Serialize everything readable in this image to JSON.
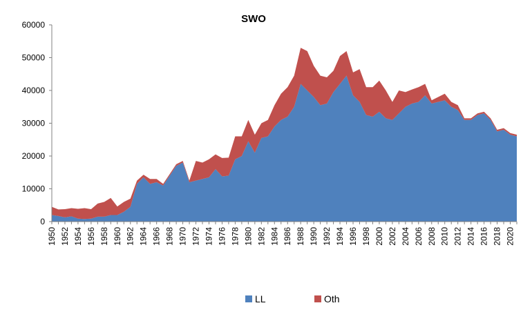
{
  "chart_data": {
    "type": "area",
    "stacked": true,
    "title": "SWO",
    "xlabel": "",
    "ylabel": "",
    "ylim": [
      0,
      60000
    ],
    "yticks": [
      0,
      10000,
      20000,
      30000,
      40000,
      50000,
      60000
    ],
    "grid": false,
    "legend_position": "bottom",
    "x": [
      1950,
      1951,
      1952,
      1953,
      1954,
      1955,
      1956,
      1957,
      1958,
      1959,
      1960,
      1961,
      1962,
      1963,
      1964,
      1965,
      1966,
      1967,
      1968,
      1969,
      1970,
      1971,
      1972,
      1973,
      1974,
      1975,
      1976,
      1977,
      1978,
      1979,
      1980,
      1981,
      1982,
      1983,
      1984,
      1985,
      1986,
      1987,
      1988,
      1989,
      1990,
      1991,
      1992,
      1993,
      1994,
      1995,
      1996,
      1997,
      1998,
      1999,
      2000,
      2001,
      2002,
      2003,
      2004,
      2005,
      2006,
      2007,
      2008,
      2009,
      2010,
      2011,
      2012,
      2013,
      2014,
      2015,
      2016,
      2017,
      2018,
      2019,
      2020,
      2021
    ],
    "xtick_labels": [
      "1950",
      "1952",
      "1954",
      "1956",
      "1958",
      "1960",
      "1962",
      "1964",
      "1966",
      "1968",
      "1970",
      "1972",
      "1974",
      "1976",
      "1978",
      "1980",
      "1982",
      "1984",
      "1986",
      "1988",
      "1990",
      "1992",
      "1994",
      "1996",
      "1998",
      "2000",
      "2002",
      "2004",
      "2006",
      "2008",
      "2010",
      "2012",
      "2014",
      "2016",
      "2018",
      "2020"
    ],
    "series": [
      {
        "name": "LL",
        "color": "#4f81bd",
        "values": [
          2000,
          1700,
          1300,
          1600,
          900,
          800,
          900,
          1500,
          1500,
          2000,
          2000,
          3000,
          4500,
          11500,
          13500,
          11500,
          12000,
          11000,
          14000,
          17000,
          18000,
          12000,
          12500,
          13000,
          13500,
          16000,
          13800,
          14000,
          19000,
          20000,
          24500,
          21000,
          25500,
          26000,
          29000,
          31000,
          32000,
          35000,
          42000,
          40000,
          38000,
          35500,
          36000,
          39500,
          42000,
          44500,
          38500,
          36500,
          32500,
          32000,
          33500,
          31500,
          31000,
          33000,
          35000,
          36000,
          36500,
          38500,
          36000,
          36500,
          37000,
          35000,
          34000,
          31000,
          31000,
          32500,
          33000,
          31000,
          27500,
          28000,
          26500,
          26000
        ]
      },
      {
        "name": "Oth",
        "color": "#c0504d",
        "values": [
          2500,
          2000,
          2500,
          2500,
          3000,
          3300,
          2900,
          4000,
          4500,
          5200,
          2600,
          3000,
          2500,
          1000,
          800,
          1500,
          1000,
          500,
          500,
          500,
          500,
          500,
          6000,
          5000,
          5500,
          4500,
          5600,
          5500,
          7000,
          6000,
          6500,
          5500,
          4500,
          5000,
          6500,
          8000,
          9000,
          9500,
          11000,
          12000,
          9500,
          9000,
          8000,
          6500,
          8500,
          7500,
          7000,
          10000,
          8500,
          9000,
          9500,
          8500,
          5500,
          7000,
          4500,
          4300,
          4500,
          3500,
          1000,
          1500,
          2000,
          1500,
          1500,
          500,
          500,
          500,
          500,
          500,
          500,
          500,
          500,
          500
        ]
      }
    ]
  }
}
